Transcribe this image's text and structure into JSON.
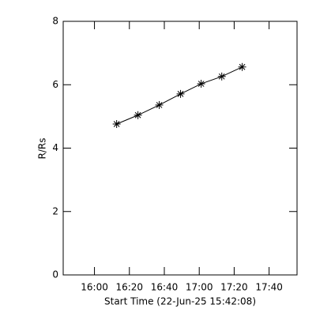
{
  "chart_data": {
    "type": "line",
    "xlabel": "Start Time (22-Jun-25 15:42:08)",
    "ylabel": "R/Rs",
    "x": [
      972.7,
      984.9,
      997.1,
      1009.3,
      1021.1,
      1032.9,
      1044.6
    ],
    "values": [
      4.76,
      5.04,
      5.36,
      5.71,
      6.03,
      6.26,
      6.56
    ],
    "color": "#000000",
    "xlim": [
      942.1,
      1076
    ],
    "xticks": [
      {
        "value": 960,
        "label": "16:00"
      },
      {
        "value": 980,
        "label": "16:20"
      },
      {
        "value": 1000,
        "label": "16:40"
      },
      {
        "value": 1020,
        "label": "17:00"
      },
      {
        "value": 1040,
        "label": "17:20"
      },
      {
        "value": 1060,
        "label": "17:40"
      }
    ],
    "ylim": [
      0,
      8
    ],
    "yticks": [
      0,
      2,
      4,
      6,
      8
    ]
  }
}
